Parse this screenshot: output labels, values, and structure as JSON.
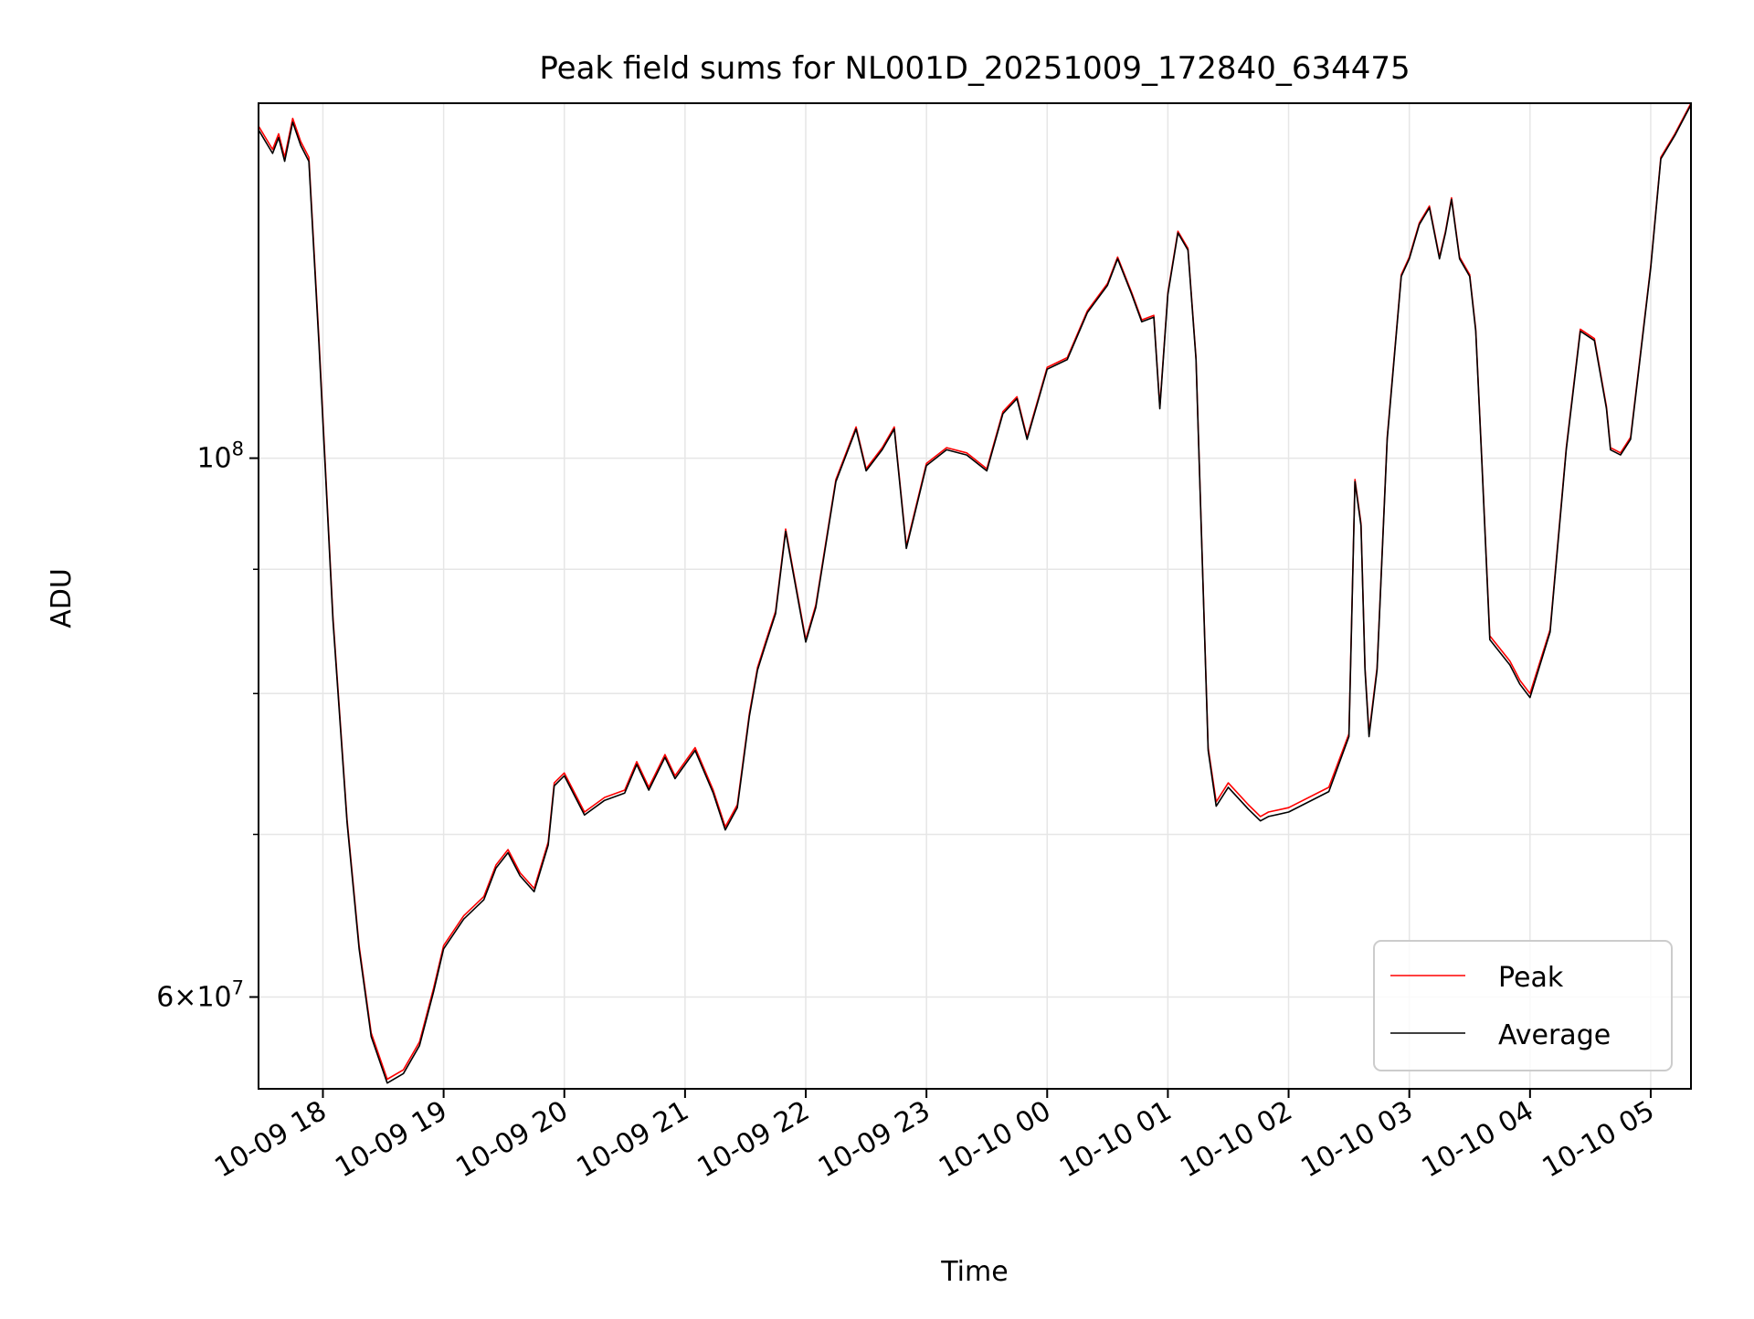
{
  "chart_data": {
    "type": "line",
    "title": "Peak field sums for NL001D_20251009_172840_634475",
    "xlabel": "Time",
    "ylabel": "ADU",
    "yscale": "log",
    "xlim": [
      "2025-10-09 17:28",
      "2025-10-10 05:20"
    ],
    "ylim": [
      55000000,
      140000000
    ],
    "x_ticks": [
      "10-09 18",
      "10-09 19",
      "10-09 20",
      "10-09 21",
      "10-09 22",
      "10-09 23",
      "10-10 00",
      "10-10 01",
      "10-10 02",
      "10-10 03",
      "10-10 04",
      "10-10 05"
    ],
    "y_major_ticks": [
      {
        "value": 100000000,
        "base": "10",
        "exp": "8",
        "coef": ""
      },
      {
        "value": 60000000,
        "base": "10",
        "exp": "7",
        "coef": "6"
      }
    ],
    "y_minor_ticks": [
      70000000,
      80000000,
      90000000
    ],
    "grid": true,
    "legend_position": "lower-right",
    "colors": {
      "Peak": "#ff0000",
      "Average": "#000000",
      "grid": "#e6e6e6"
    },
    "x": [
      "2025-10-09 17:28",
      "2025-10-09 17:35",
      "2025-10-09 17:38",
      "2025-10-09 17:41",
      "2025-10-09 17:45",
      "2025-10-09 17:49",
      "2025-10-09 17:53",
      "2025-10-09 17:58",
      "2025-10-09 18:05",
      "2025-10-09 18:12",
      "2025-10-09 18:18",
      "2025-10-09 18:24",
      "2025-10-09 18:32",
      "2025-10-09 18:40",
      "2025-10-09 18:48",
      "2025-10-09 18:55",
      "2025-10-09 19:00",
      "2025-10-09 19:10",
      "2025-10-09 19:20",
      "2025-10-09 19:26",
      "2025-10-09 19:32",
      "2025-10-09 19:38",
      "2025-10-09 19:45",
      "2025-10-09 19:52",
      "2025-10-09 19:55",
      "2025-10-09 20:00",
      "2025-10-09 20:10",
      "2025-10-09 20:20",
      "2025-10-09 20:30",
      "2025-10-09 20:36",
      "2025-10-09 20:42",
      "2025-10-09 20:50",
      "2025-10-09 20:55",
      "2025-10-09 21:05",
      "2025-10-09 21:14",
      "2025-10-09 21:20",
      "2025-10-09 21:26",
      "2025-10-09 21:32",
      "2025-10-09 21:36",
      "2025-10-09 21:40",
      "2025-10-09 21:45",
      "2025-10-09 21:50",
      "2025-10-09 22:00",
      "2025-10-09 22:05",
      "2025-10-09 22:15",
      "2025-10-09 22:25",
      "2025-10-09 22:30",
      "2025-10-09 22:38",
      "2025-10-09 22:44",
      "2025-10-09 22:50",
      "2025-10-09 23:00",
      "2025-10-09 23:10",
      "2025-10-09 23:20",
      "2025-10-09 23:30",
      "2025-10-09 23:38",
      "2025-10-09 23:45",
      "2025-10-09 23:50",
      "2025-10-10 00:00",
      "2025-10-10 00:10",
      "2025-10-10 00:20",
      "2025-10-10 00:30",
      "2025-10-10 00:35",
      "2025-10-10 00:42",
      "2025-10-10 00:47",
      "2025-10-10 00:53",
      "2025-10-10 00:56",
      "2025-10-10 01:00",
      "2025-10-10 01:05",
      "2025-10-10 01:10",
      "2025-10-10 01:14",
      "2025-10-10 01:20",
      "2025-10-10 01:24",
      "2025-10-10 01:30",
      "2025-10-10 01:40",
      "2025-10-10 01:46",
      "2025-10-10 01:50",
      "2025-10-10 02:00",
      "2025-10-10 02:20",
      "2025-10-10 02:30",
      "2025-10-10 02:33",
      "2025-10-10 02:36",
      "2025-10-10 02:38",
      "2025-10-10 02:40",
      "2025-10-10 02:44",
      "2025-10-10 02:49",
      "2025-10-10 02:56",
      "2025-10-10 03:00",
      "2025-10-10 03:05",
      "2025-10-10 03:10",
      "2025-10-10 03:15",
      "2025-10-10 03:18",
      "2025-10-10 03:21",
      "2025-10-10 03:25",
      "2025-10-10 03:30",
      "2025-10-10 03:33",
      "2025-10-10 03:36",
      "2025-10-10 03:40",
      "2025-10-10 03:50",
      "2025-10-10 03:55",
      "2025-10-10 04:00",
      "2025-10-10 04:10",
      "2025-10-10 04:18",
      "2025-10-10 04:25",
      "2025-10-10 04:32",
      "2025-10-10 04:38",
      "2025-10-10 04:40",
      "2025-10-10 04:45",
      "2025-10-10 04:50",
      "2025-10-10 05:00",
      "2025-10-10 05:05",
      "2025-10-10 05:12",
      "2025-10-10 05:20"
    ],
    "series": [
      {
        "name": "Peak",
        "values": [
          137000000,
          134000000,
          136000000,
          133000000,
          138000000,
          135000000,
          133000000,
          112000000,
          86000000,
          71000000,
          63000000,
          58000000,
          55500000,
          56000000,
          57500000,
          60500000,
          63000000,
          64800000,
          66000000,
          68000000,
          69000000,
          67500000,
          66500000,
          69500000,
          73500000,
          74200000,
          71500000,
          72500000,
          73000000,
          75000000,
          73200000,
          75500000,
          74000000,
          76000000,
          73000000,
          70500000,
          72000000,
          78500000,
          82000000,
          84000000,
          86500000,
          93500000,
          84200000,
          87000000,
          98000000,
          103000000,
          99000000,
          101000000,
          103000000,
          92000000,
          99500000,
          101000000,
          100500000,
          99000000,
          104500000,
          106000000,
          102000000,
          109000000,
          110000000,
          115000000,
          118000000,
          121000000,
          117000000,
          114000000,
          114500000,
          105000000,
          117000000,
          124000000,
          122000000,
          110000000,
          76000000,
          72200000,
          73500000,
          72000000,
          71200000,
          71500000,
          71800000,
          73200000,
          77000000,
          98000000,
          94000000,
          82000000,
          77000000,
          82000000,
          102000000,
          119000000,
          121000000,
          125000000,
          127000000,
          121000000,
          124000000,
          128000000,
          121000000,
          119000000,
          113000000,
          100000000,
          84500000,
          82500000,
          81000000,
          80000000,
          85000000,
          101000000,
          113000000,
          112000000,
          105000000,
          101000000,
          100500000,
          102000000,
          120000000,
          133000000,
          136000000,
          140000000
        ]
      },
      {
        "name": "Average",
        "values": [
          136500000,
          133500000,
          135500000,
          132500000,
          137500000,
          134500000,
          132500000,
          111500000,
          85700000,
          70800000,
          62800000,
          57800000,
          55300000,
          55800000,
          57300000,
          60300000,
          62800000,
          64600000,
          65800000,
          67800000,
          68800000,
          67300000,
          66300000,
          69300000,
          73300000,
          74000000,
          71300000,
          72300000,
          72800000,
          74800000,
          73000000,
          75300000,
          73800000,
          75800000,
          72800000,
          70300000,
          71800000,
          78300000,
          81800000,
          83800000,
          86300000,
          93300000,
          84000000,
          86800000,
          97800000,
          102800000,
          98800000,
          100800000,
          102800000,
          91800000,
          99300000,
          100800000,
          100300000,
          98800000,
          104300000,
          105800000,
          101800000,
          108800000,
          109800000,
          114800000,
          117800000,
          120800000,
          116800000,
          113800000,
          114300000,
          104800000,
          116800000,
          123800000,
          121800000,
          109800000,
          75800000,
          71900000,
          73200000,
          71700000,
          70900000,
          71200000,
          71500000,
          72900000,
          76800000,
          97800000,
          93800000,
          81800000,
          76800000,
          81800000,
          101800000,
          118800000,
          120800000,
          124800000,
          126800000,
          120800000,
          123800000,
          127800000,
          120800000,
          118800000,
          112800000,
          99800000,
          84200000,
          82200000,
          80700000,
          79700000,
          84800000,
          100800000,
          112800000,
          111800000,
          104800000,
          100800000,
          100300000,
          101800000,
          119800000,
          132800000,
          135800000,
          139800000
        ]
      }
    ]
  }
}
